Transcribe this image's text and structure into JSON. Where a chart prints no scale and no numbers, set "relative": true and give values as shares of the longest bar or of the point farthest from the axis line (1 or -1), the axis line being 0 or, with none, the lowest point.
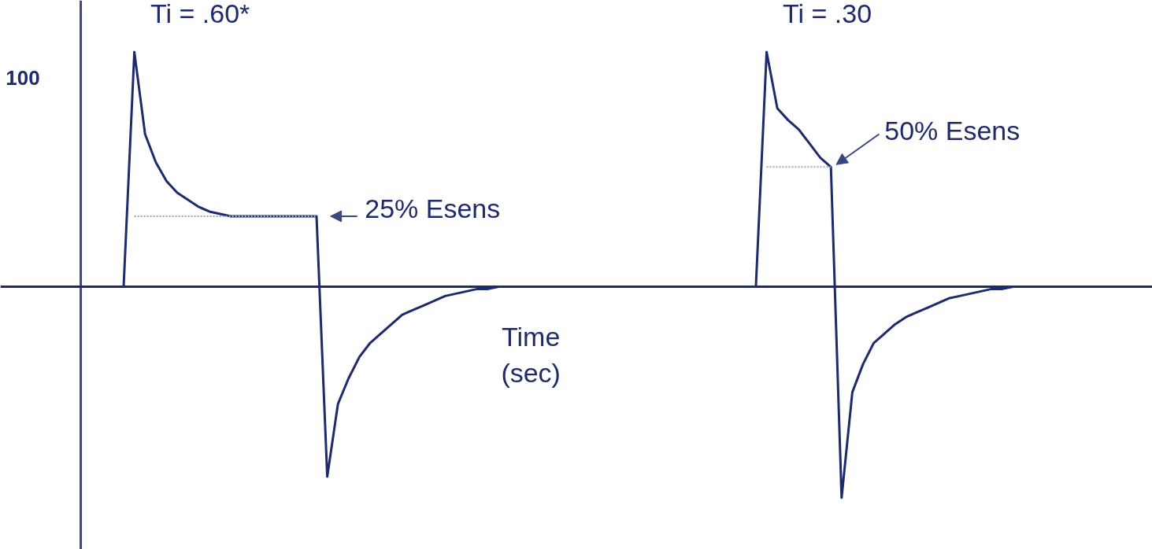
{
  "chart_data": {
    "type": "line",
    "relative": true,
    "xlabel": "Time\n(sec)",
    "categories": [
      null,
      null,
      null,
      null,
      null,
      null,
      null,
      null,
      null,
      null,
      null,
      null,
      null,
      null,
      null,
      null,
      null,
      null,
      null,
      null,
      null,
      null,
      null,
      null,
      null,
      null,
      null,
      null,
      null,
      null,
      null,
      null,
      null,
      null,
      null,
      null,
      null,
      null,
      null,
      null,
      null,
      null,
      null,
      null,
      null,
      null,
      null,
      null,
      null,
      null,
      null,
      null,
      null,
      null,
      null,
      null,
      null,
      null,
      null,
      null,
      null,
      null,
      null,
      null,
      null,
      null,
      null,
      null,
      null,
      null,
      null,
      null,
      null,
      null,
      null,
      null,
      null,
      null,
      null,
      null,
      null,
      null,
      null,
      null,
      null,
      null,
      null,
      null,
      null,
      null,
      null,
      null,
      null,
      null,
      null,
      null,
      null,
      null,
      null,
      null,
      null
    ],
    "series": [
      {
        "color": "#1f2a6b",
        "line_style": "solid",
        "values": [
          0,
          0,
          0,
          0,
          0,
          1,
          0.65,
          0.53,
          0.45,
          0.4,
          0.37,
          0.34,
          0.32,
          0.31,
          0.3,
          0.3,
          0.3,
          0.3,
          0.3,
          0.3,
          0.3,
          0.3,
          0.3,
          -0.81,
          -0.5,
          -0.39,
          -0.3,
          -0.24,
          -0.2,
          -0.16,
          -0.12,
          -0.1,
          -0.08,
          -0.06,
          -0.04,
          -0.03,
          -0.02,
          -0.01,
          -0.01,
          0,
          0,
          0,
          0,
          0,
          0,
          0,
          0,
          0,
          0,
          0,
          0,
          0,
          0,
          0,
          0,
          0,
          0,
          0,
          0,
          0,
          0,
          0,
          0,
          0,
          1,
          0.76,
          0.71,
          0.67,
          0.61,
          0.55,
          0.51,
          -0.9,
          -0.45,
          -0.33,
          -0.24,
          -0.2,
          -0.16,
          -0.13,
          -0.11,
          -0.09,
          -0.07,
          -0.05,
          -0.04,
          -0.03,
          -0.02,
          -0.01,
          -0.01,
          0,
          0,
          0,
          0,
          0,
          0,
          0,
          0,
          0,
          0,
          0,
          0,
          0,
          0
        ]
      },
      {
        "color": "#9aa6c4",
        "line_style": "dotted",
        "values": [
          null,
          null,
          null,
          null,
          null,
          0.3,
          0.3,
          0.3,
          0.3,
          0.3,
          0.3,
          0.3,
          0.3,
          0.3,
          0.3,
          0.3,
          0.3,
          0.3,
          0.3,
          0.3,
          0.3,
          0.3,
          0.3,
          null,
          null,
          null,
          null,
          null,
          null,
          null,
          null,
          null,
          null,
          null,
          null,
          null,
          null,
          null,
          null,
          null,
          null,
          null,
          null,
          null,
          null,
          null,
          null,
          null,
          null,
          null,
          null,
          null,
          null,
          null,
          null,
          null,
          null,
          null,
          null,
          null,
          null,
          null,
          null,
          null,
          0.51,
          0.51,
          0.51,
          0.51,
          0.51,
          0.51,
          0.51,
          null,
          null,
          null,
          null,
          null,
          null,
          null,
          null,
          null,
          null,
          null,
          null,
          null,
          null,
          null,
          null,
          null,
          null,
          null,
          null,
          null,
          null,
          null,
          null,
          null,
          null,
          null,
          null,
          null,
          null
        ]
      }
    ],
    "ref_lines": [
      {
        "axis": "y",
        "value": 0,
        "color": "#1f2a6b"
      }
    ],
    "annotations": [
      "100",
      "Ti = .60*",
      "Ti = .30",
      "25% Esens",
      "50% Esens"
    ]
  }
}
